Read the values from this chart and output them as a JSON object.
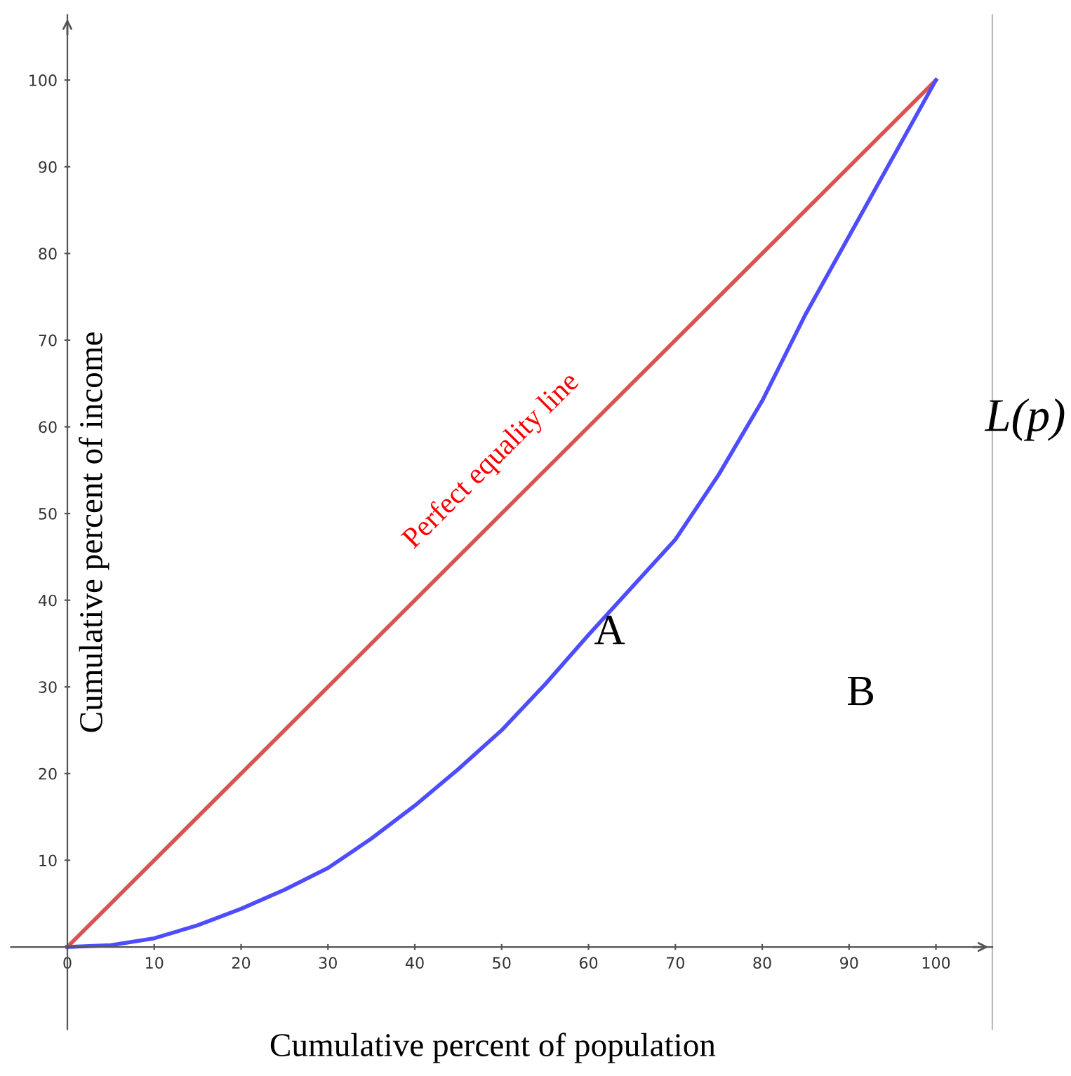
{
  "chart_data": {
    "type": "line",
    "xlabel": "Cumulative percent of population",
    "ylabel": "Cumulative percent of income",
    "series": [
      {
        "color": "#d9534f",
        "x": [
          0,
          100
        ],
        "values": [
          0,
          100
        ]
      },
      {
        "color": "#4d4dff",
        "x": [
          0,
          5,
          10,
          15,
          20,
          25,
          30,
          35,
          40,
          45,
          50,
          55,
          60,
          65,
          70,
          75,
          80,
          85,
          90,
          95,
          100
        ],
        "values": [
          0,
          0.2,
          1,
          2.5,
          4.4,
          6.6,
          9.1,
          12.5,
          16.3,
          20.5,
          25,
          30.3,
          36,
          41.5,
          47,
          54.5,
          63,
          73,
          82,
          91,
          100
        ]
      }
    ],
    "annotations": [
      "Perfect equality line",
      "A",
      "B",
      "L(p)"
    ],
    "xlim": [
      -6.5,
      106.5
    ],
    "ylim": [
      -9.5,
      107.5
    ],
    "xticks": [
      0,
      10,
      20,
      30,
      40,
      50,
      60,
      70,
      80,
      90,
      100
    ],
    "yticks": [
      10,
      20,
      30,
      40,
      50,
      60,
      70,
      80,
      90,
      100
    ],
    "grid": false,
    "legend": false,
    "marker": "none",
    "line_style": "solid"
  }
}
